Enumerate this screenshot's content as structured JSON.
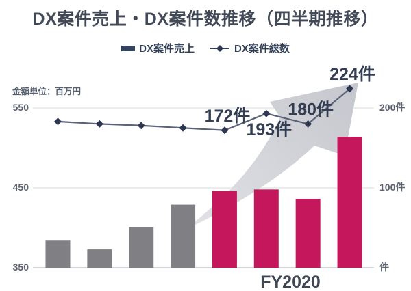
{
  "title": "DX案件売上・DX案件数推移（四半期推移）",
  "legend": {
    "bar_label": "DX案件売上",
    "line_label": "DX案件総数"
  },
  "axes": {
    "left": {
      "unit_label": "金額単位：百万円",
      "ticks": [
        {
          "label": "550",
          "value": 550
        },
        {
          "label": "450",
          "value": 450
        },
        {
          "label": "350",
          "value": 350
        }
      ]
    },
    "right": {
      "ticks": [
        {
          "label": "200件",
          "value": 200
        },
        {
          "label": "100件",
          "value": 100
        },
        {
          "label": "件",
          "value": 0
        }
      ]
    },
    "x": {
      "group_label": "FY2020"
    }
  },
  "colors": {
    "bar_gray": "#808084",
    "bar_pink": "#c4175c",
    "line": "#5a6378",
    "marker": "#2d3850",
    "label_text": "#333e52",
    "gridline": "#e4e5e9",
    "baseline": "#d2d4d9",
    "arrow_light": "#dfe1e5",
    "arrow_dark": "#c2c4cb"
  },
  "chart_data": {
    "type": "combo",
    "quarter_count": 8,
    "series": [
      {
        "name": "DX案件売上",
        "type": "bar",
        "unit": "百万円",
        "values": [
          384,
          373,
          401,
          429,
          446,
          448,
          436,
          514
        ],
        "bar_color_keys": [
          "bar_gray",
          "bar_gray",
          "bar_gray",
          "bar_gray",
          "bar_pink",
          "bar_pink",
          "bar_pink",
          "bar_pink"
        ],
        "note": "values estimated from bar heights vs 350/450/550 gridlines; last 4 bars are FY2020 quarters"
      },
      {
        "name": "DX案件総数",
        "type": "line",
        "unit": "件",
        "values": [
          183,
          180,
          178,
          175,
          172,
          193,
          180,
          224
        ],
        "note": "first 4 points unlabeled (estimated); last 4 labeled on chart"
      }
    ],
    "point_labels": [
      {
        "index": 4,
        "text": "172件",
        "placement": "above"
      },
      {
        "index": 5,
        "text": "193件",
        "placement": "below"
      },
      {
        "index": 6,
        "text": "180件",
        "placement": "above"
      },
      {
        "index": 7,
        "text": "224件",
        "placement": "above"
      }
    ],
    "left_axis_range": [
      350,
      570
    ],
    "right_axis_range": [
      0,
      230
    ],
    "grid": "horizontal",
    "legend_position": "top",
    "decoration": "large gray upward growth arrow behind FY2020 bars"
  }
}
